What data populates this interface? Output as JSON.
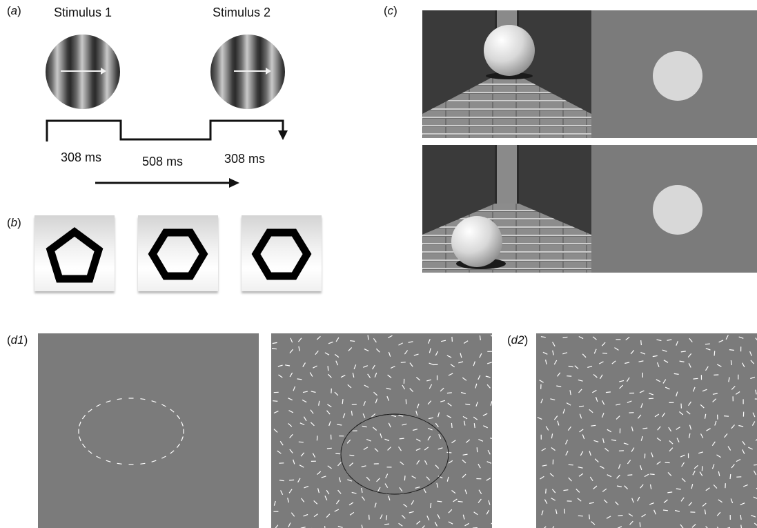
{
  "panel_labels": {
    "a": {
      "prefix": "(",
      "letter": "a",
      "suffix": ")"
    },
    "b": {
      "prefix": "(",
      "letter": "b",
      "suffix": ")"
    },
    "c": {
      "prefix": "(",
      "letter": "c",
      "suffix": ")"
    },
    "d1": {
      "prefix": "(",
      "letter": "d1",
      "suffix": ")"
    },
    "d2": {
      "prefix": "(",
      "letter": "d2",
      "suffix": ")"
    }
  },
  "panel_a": {
    "stimulus1_label": "Stimulus 1",
    "stimulus2_label": "Stimulus 2",
    "durations": [
      "308 ms",
      "508 ms",
      "308 ms"
    ]
  },
  "panel_b": {
    "shapes": [
      "pentagon",
      "hexagon",
      "hexagon"
    ]
  },
  "colors": {
    "gray_background": "#7b7b7b",
    "disk": "#d8d8d8",
    "sphere": "#e6e6e6",
    "contour": "#222222"
  }
}
